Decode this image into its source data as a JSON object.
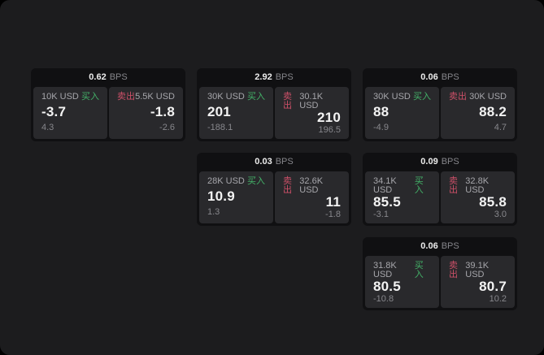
{
  "labels": {
    "buy": "买入",
    "sell": "卖出",
    "bps_unit": "BPS"
  },
  "colors": {
    "window_bg": "#1c1c1e",
    "card_bg": "#101012",
    "panel_bg": "#29292c",
    "buy_green": "#43b168",
    "sell_red": "#cd5068"
  },
  "cards": [
    {
      "spread_bps": "0.62",
      "buy": {
        "amount": "10K USD",
        "price": "-3.7",
        "change": "4.3"
      },
      "sell": {
        "amount": "5.5K USD",
        "price": "-1.8",
        "change": "-2.6"
      }
    },
    {
      "spread_bps": "2.92",
      "buy": {
        "amount": "30K USD",
        "price": "201",
        "change": "-188.1"
      },
      "sell": {
        "amount": "30.1K USD",
        "price": "210",
        "change": "196.5"
      }
    },
    {
      "spread_bps": "0.06",
      "buy": {
        "amount": "30K USD",
        "price": "88",
        "change": "-4.9"
      },
      "sell": {
        "amount": "30K USD",
        "price": "88.2",
        "change": "4.7"
      }
    },
    {
      "spread_bps": "0.03",
      "buy": {
        "amount": "28K USD",
        "price": "10.9",
        "change": "1.3"
      },
      "sell": {
        "amount": "32.6K USD",
        "price": "11",
        "change": "-1.8"
      }
    },
    {
      "spread_bps": "0.09",
      "buy": {
        "amount": "34.1K USD",
        "price": "85.5",
        "change": "-3.1"
      },
      "sell": {
        "amount": "32.8K USD",
        "price": "85.8",
        "change": "3.0"
      }
    },
    {
      "spread_bps": "0.06",
      "buy": {
        "amount": "31.8K USD",
        "price": "80.5",
        "change": "-10.8"
      },
      "sell": {
        "amount": "39.1K USD",
        "price": "80.7",
        "change": "10.2"
      }
    }
  ]
}
